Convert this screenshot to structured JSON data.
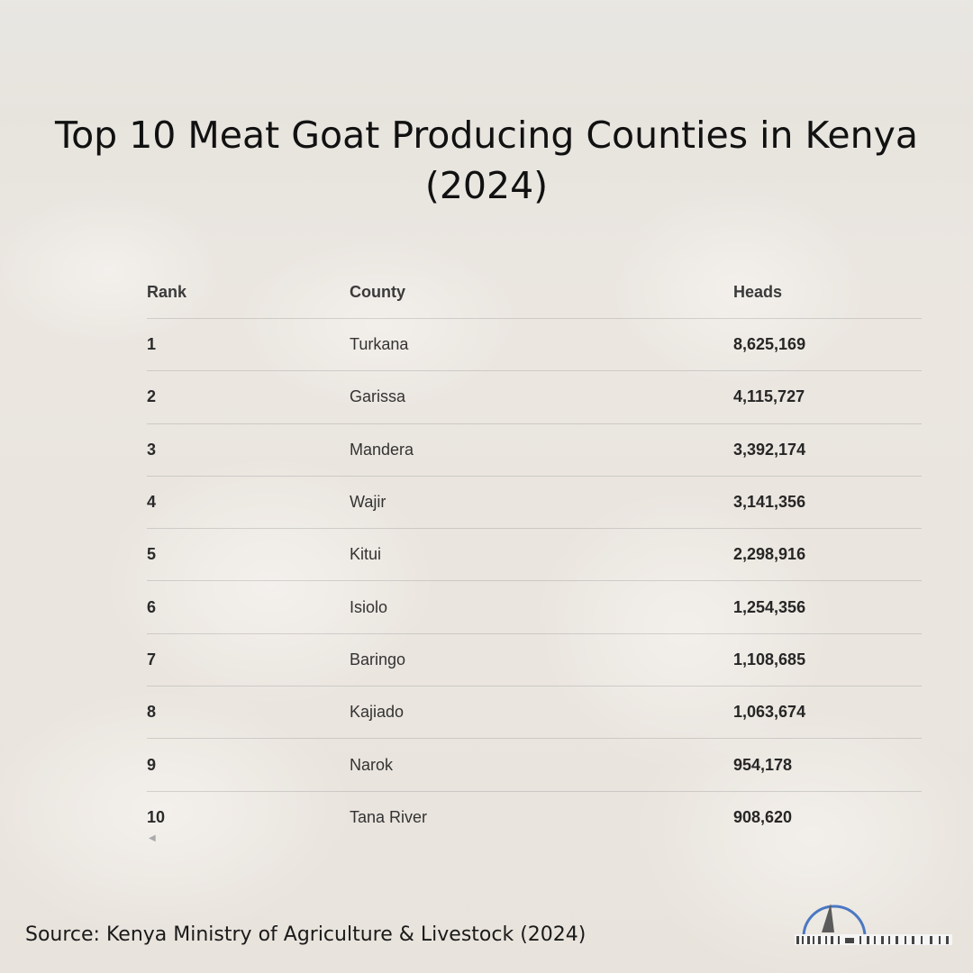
{
  "title_line1": "Top 10 Meat Goat Producing Counties in Kenya",
  "title_line2": "(2024)",
  "source": "Source: Kenya Ministry of Agriculture & Livestock (2024)",
  "colors": {
    "logo_blue": "#4a78c2",
    "text": "#1f1f1f"
  },
  "icons": {
    "scroll_left": "left-arrow-icon",
    "logo": "brand-logo-icon"
  },
  "chart_data": {
    "type": "table",
    "columns": [
      "Rank",
      "County",
      "Heads"
    ],
    "rows": [
      {
        "rank": "1",
        "county": "Turkana",
        "heads": "8,625,169"
      },
      {
        "rank": "2",
        "county": "Garissa",
        "heads": "4,115,727"
      },
      {
        "rank": "3",
        "county": "Mandera",
        "heads": "3,392,174"
      },
      {
        "rank": "4",
        "county": "Wajir",
        "heads": "3,141,356"
      },
      {
        "rank": "5",
        "county": "Kitui",
        "heads": "2,298,916"
      },
      {
        "rank": "6",
        "county": "Isiolo",
        "heads": "1,254,356"
      },
      {
        "rank": "7",
        "county": "Baringo",
        "heads": "1,108,685"
      },
      {
        "rank": "8",
        "county": "Kajiado",
        "heads": "1,063,674"
      },
      {
        "rank": "9",
        "county": "Narok",
        "heads": "954,178"
      },
      {
        "rank": "10",
        "county": "Tana River",
        "heads": "908,620"
      }
    ]
  }
}
